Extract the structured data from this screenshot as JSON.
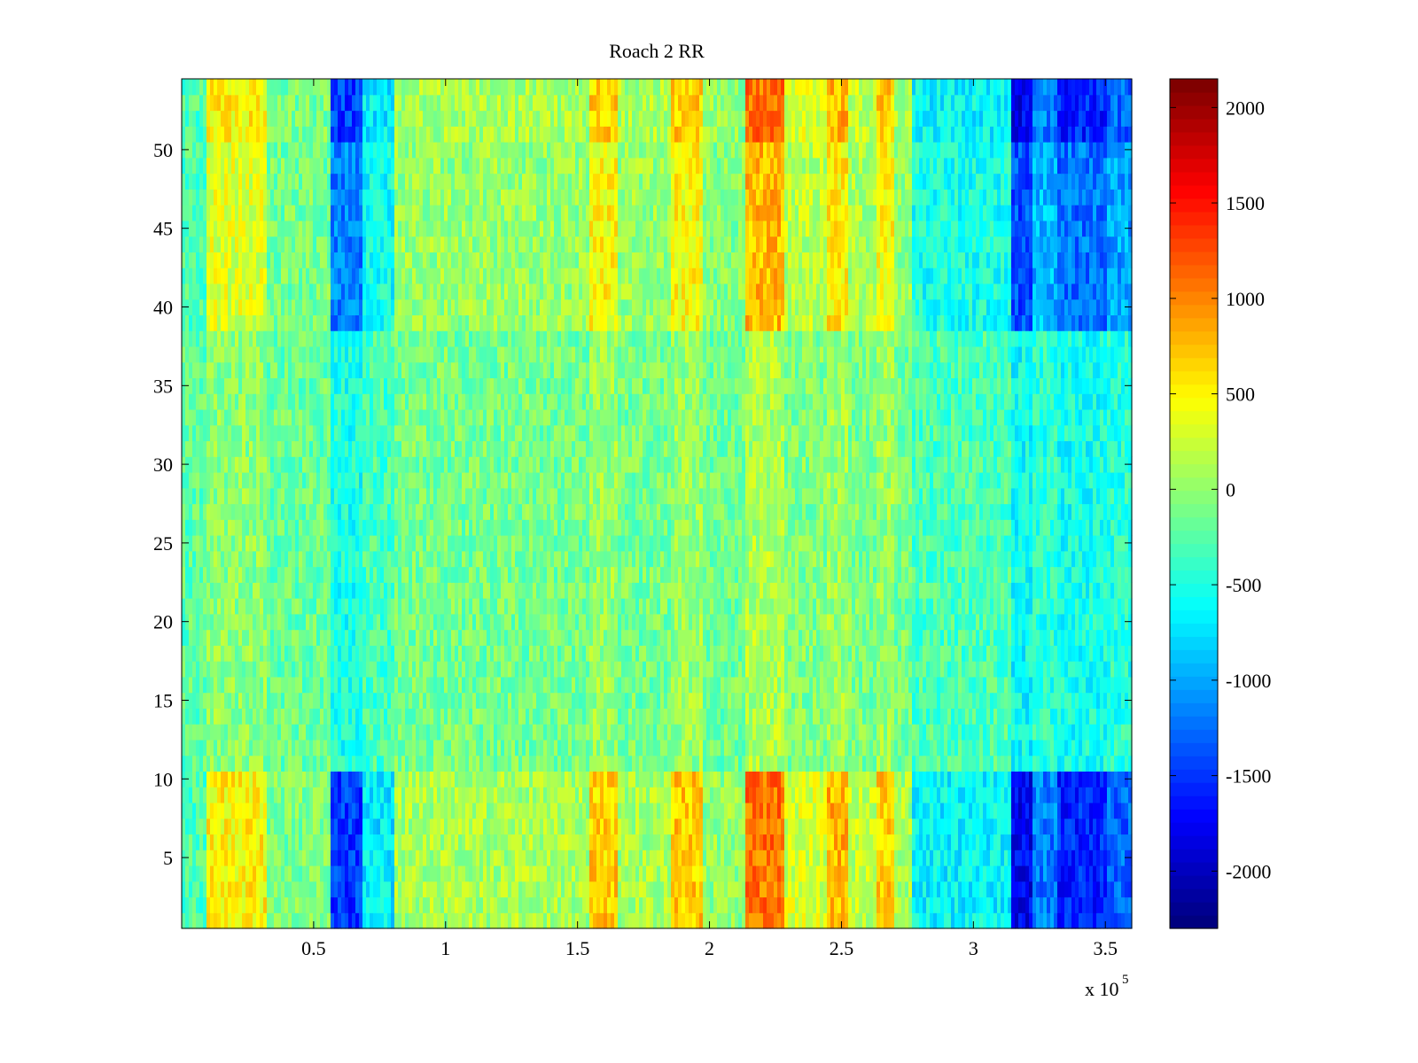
{
  "chart_data": {
    "type": "heatmap",
    "title": "Roach 2 RR",
    "xlabel": "",
    "ylabel": "",
    "x_multiplier_label": {
      "base": "x 10",
      "exponent": "5"
    },
    "xlim": [
      0,
      3.6
    ],
    "ylim": [
      0.5,
      54.5
    ],
    "x_ticks": [
      0.5,
      1,
      1.5,
      2,
      2.5,
      3,
      3.5
    ],
    "x_tick_labels": [
      "0.5",
      "1",
      "1.5",
      "2",
      "2.5",
      "3",
      "3.5"
    ],
    "y_ticks": [
      5,
      10,
      15,
      20,
      25,
      30,
      35,
      40,
      45,
      50
    ],
    "y_tick_labels": [
      "5",
      "10",
      "15",
      "20",
      "25",
      "30",
      "35",
      "40",
      "45",
      "50"
    ],
    "grid": false,
    "colormap": "jet",
    "colorbar": {
      "placement": "right",
      "clim": [
        -2300,
        2150
      ],
      "ticks": [
        -2000,
        -1500,
        -1000,
        -500,
        0,
        500,
        1000,
        1500,
        2000
      ],
      "tick_labels": [
        "-2000",
        "-1500",
        "-1000",
        "-500",
        "0",
        "500",
        "1000",
        "1500",
        "2000"
      ]
    },
    "rows": 54,
    "x_bands": [
      {
        "x_start": 0.0,
        "x_end": 0.1,
        "mean": -300
      },
      {
        "x_start": 0.1,
        "x_end": 0.32,
        "mean": 500
      },
      {
        "x_start": 0.32,
        "x_end": 0.57,
        "mean": -100
      },
      {
        "x_start": 0.57,
        "x_end": 0.68,
        "mean": -1500
      },
      {
        "x_start": 0.68,
        "x_end": 0.8,
        "mean": -700
      },
      {
        "x_start": 0.8,
        "x_end": 1.55,
        "mean": 100
      },
      {
        "x_start": 1.55,
        "x_end": 1.65,
        "mean": 700
      },
      {
        "x_start": 1.65,
        "x_end": 1.85,
        "mean": 100
      },
      {
        "x_start": 1.85,
        "x_end": 1.98,
        "mean": 700
      },
      {
        "x_start": 1.98,
        "x_end": 2.14,
        "mean": 0
      },
      {
        "x_start": 2.14,
        "x_end": 2.28,
        "mean": 1100
      },
      {
        "x_start": 2.28,
        "x_end": 2.45,
        "mean": 300
      },
      {
        "x_start": 2.45,
        "x_end": 2.52,
        "mean": 800
      },
      {
        "x_start": 2.52,
        "x_end": 2.63,
        "mean": 200
      },
      {
        "x_start": 2.63,
        "x_end": 2.7,
        "mean": 700
      },
      {
        "x_start": 2.7,
        "x_end": 2.77,
        "mean": 100
      },
      {
        "x_start": 2.77,
        "x_end": 3.14,
        "mean": -650
      },
      {
        "x_start": 3.14,
        "x_end": 3.23,
        "mean": -1800
      },
      {
        "x_start": 3.23,
        "x_end": 3.32,
        "mean": -1200
      },
      {
        "x_start": 3.32,
        "x_end": 3.5,
        "mean": -1600
      },
      {
        "x_start": 3.5,
        "x_end": 3.6,
        "mean": -1300
      }
    ],
    "row_weights": {
      "y_start": [
        1,
        11,
        39,
        51
      ],
      "y_end": [
        10,
        38,
        50,
        54
      ],
      "amplitude": [
        1.0,
        0.25,
        0.75,
        1.0
      ]
    }
  }
}
